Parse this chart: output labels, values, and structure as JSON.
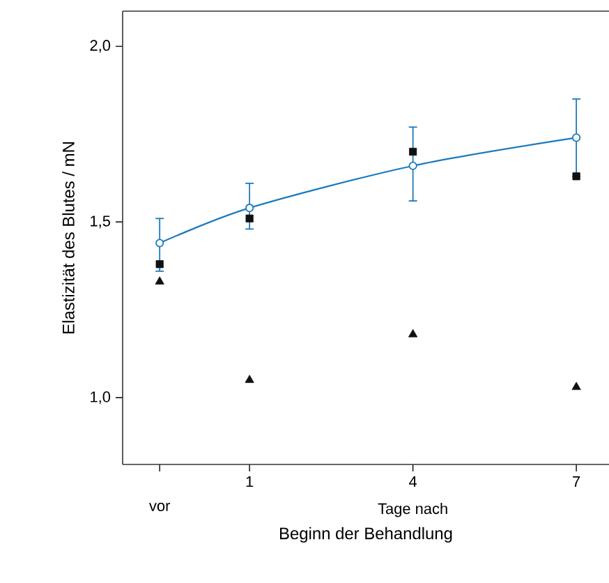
{
  "chart_data": {
    "type": "line",
    "xlabel": "Beginn der Behandlung",
    "ylabel": "Elastizität des Blutes / mN",
    "x": [
      -0.65,
      1,
      4,
      7
    ],
    "xlim": [
      -1.33,
      7.6
    ],
    "ylim": [
      0.81,
      2.1
    ],
    "xticks": [
      {
        "value": -0.65,
        "label": null
      },
      1,
      4,
      7
    ],
    "yticks": [
      {
        "value": 1.0,
        "label": "1,0"
      },
      {
        "value": 1.5,
        "label": "1,5"
      },
      {
        "value": 2.0,
        "label": "2,0"
      }
    ],
    "annotations": [
      "vor",
      "Tage nach"
    ],
    "series": [
      {
        "color": "#1a7abf",
        "marker": "circle",
        "line_style": "solid",
        "values": [
          1.44,
          1.54,
          1.66,
          1.74
        ],
        "errors": [
          [
            1.36,
            1.51
          ],
          [
            1.48,
            1.61
          ],
          [
            1.56,
            1.77
          ],
          [
            1.63,
            1.85
          ]
        ]
      },
      {
        "type": "scatter",
        "color": "#111111",
        "marker": "square",
        "values": [
          1.38,
          1.51,
          1.7,
          1.63
        ]
      },
      {
        "type": "scatter",
        "color": "#111111",
        "marker": "triangle",
        "values": [
          1.33,
          1.05,
          1.18,
          1.03
        ]
      }
    ]
  }
}
